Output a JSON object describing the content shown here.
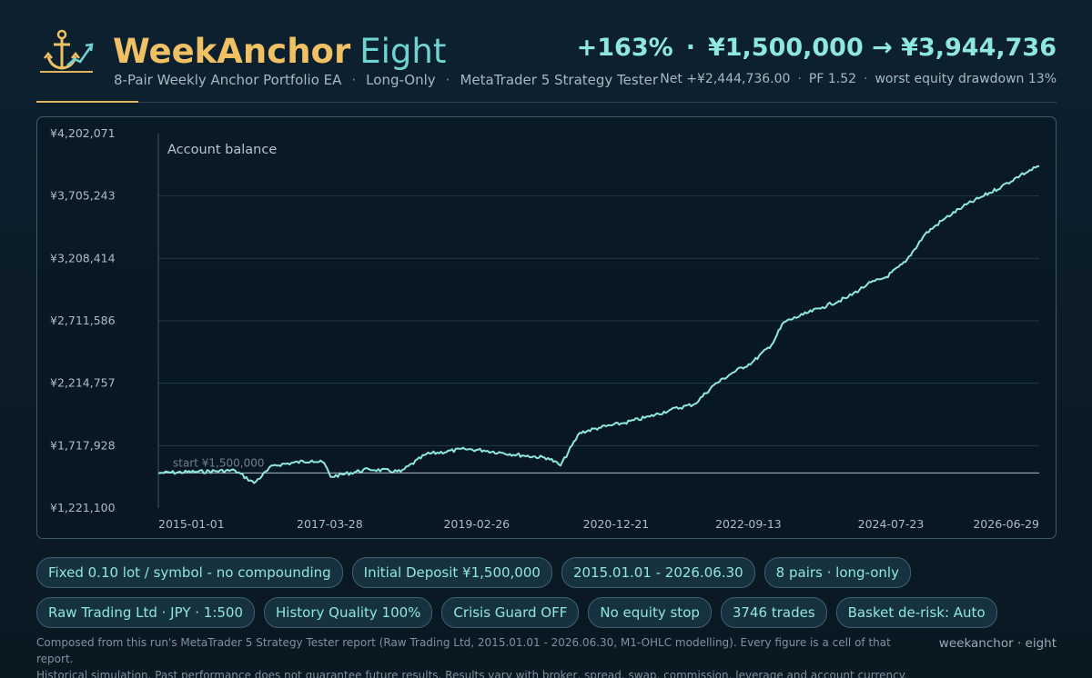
{
  "header": {
    "brand_main": "WeekAnchor",
    "brand_sub": "Eight",
    "tagline": [
      "8-Pair Weekly Anchor Portfolio EA",
      "Long-Only",
      "MetaTrader 5 Strategy Tester"
    ],
    "headline": {
      "gain": "+163%",
      "separator": "·",
      "range": "¥1,500,000 → ¥3,944,736"
    },
    "stats": [
      "Net +¥2,444,736.00",
      "PF 1.52",
      "worst equity drawdown 13%"
    ]
  },
  "colors": {
    "accent_gold": "#f0c064",
    "accent_teal": "#8ee8de",
    "line": "#8ee8de",
    "background": "#0b1b27"
  },
  "logo_icon": "anchor-with-chart-arrow-icon",
  "chart_data": {
    "type": "line",
    "title": "Account balance",
    "xlabel": "",
    "ylabel": "",
    "ylim": [
      1221100,
      4202071
    ],
    "yticks": [
      "¥1,221,100",
      "¥1,717,928",
      "¥2,214,757",
      "¥2,711,586",
      "¥3,208,414",
      "¥3,705,243",
      "¥4,202,071"
    ],
    "ytick_values": [
      1221100,
      1717928,
      2214757,
      2711586,
      3208414,
      3705243,
      4202071
    ],
    "xticks": [
      "2015-01-01",
      "2017-03-28",
      "2019-02-26",
      "2020-12-21",
      "2022-09-13",
      "2024-07-23",
      "2026-06-29"
    ],
    "xlim": [
      "2015-01-01",
      "2026-06-30"
    ],
    "grid": true,
    "baseline": {
      "label": "start ¥1,500,000",
      "value": 1500000
    },
    "series": [
      {
        "x": [
          "2015-01-01",
          "2015-07-01",
          "2016-01-01",
          "2016-04-01",
          "2016-07-01",
          "2017-01-01",
          "2017-03-01",
          "2017-04-01",
          "2017-10-01",
          "2018-03-01",
          "2018-07-01",
          "2019-01-01",
          "2019-04-01",
          "2019-07-01",
          "2019-10-01",
          "2020-02-01",
          "2020-04-01",
          "2020-07-01",
          "2020-10-01",
          "2021-02-01",
          "2021-06-01",
          "2021-09-01",
          "2022-01-01",
          "2022-04-01",
          "2022-07-01",
          "2022-10-01",
          "2023-01-01",
          "2023-03-01",
          "2023-06-01",
          "2023-09-01",
          "2024-01-01",
          "2024-04-01",
          "2024-07-01",
          "2024-10-01",
          "2025-01-01",
          "2025-04-01",
          "2025-07-01",
          "2025-10-01",
          "2026-01-01",
          "2026-04-01",
          "2026-06-30"
        ],
        "y": [
          1500000,
          1510000,
          1520000,
          1420000,
          1560000,
          1600000,
          1580000,
          1470000,
          1530000,
          1510000,
          1650000,
          1690000,
          1680000,
          1660000,
          1640000,
          1620000,
          1560000,
          1820000,
          1860000,
          1900000,
          1950000,
          2000000,
          2050000,
          2200000,
          2300000,
          2380000,
          2520000,
          2700000,
          2760000,
          2820000,
          2900000,
          3000000,
          3060000,
          3180000,
          3400000,
          3520000,
          3620000,
          3700000,
          3780000,
          3870000,
          3944736
        ]
      }
    ]
  },
  "chips": {
    "row1": [
      "Fixed 0.10 lot / symbol - no compounding",
      "Initial Deposit ¥1,500,000",
      "2015.01.01 - 2026.06.30",
      "8 pairs · long-only"
    ],
    "row2": [
      "Raw Trading Ltd · JPY · 1:500",
      "History Quality 100%",
      "Crisis Guard OFF",
      "No equity stop",
      "3746 trades",
      "Basket de-risk: Auto"
    ]
  },
  "footer": {
    "line1": "Composed from this run's MetaTrader 5 Strategy Tester report (Raw Trading Ltd, 2015.01.01 - 2026.06.30, M1-OHLC modelling). Every figure is a cell of that report.",
    "line2": "Historical simulation. Past performance does not guarantee future results. Results vary with broker, spread, swap, commission, leverage and account currency.",
    "brand": "weekanchor · eight"
  }
}
